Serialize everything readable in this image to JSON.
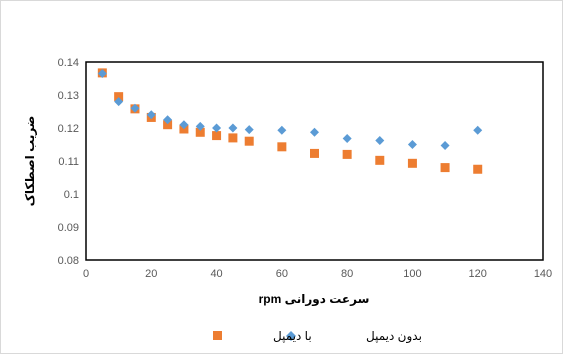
{
  "chart_data": {
    "type": "scatter",
    "title": "",
    "xlabel": "سرعت دورانی rpm",
    "ylabel": "ضریب اصطکاک",
    "xlim": [
      0,
      140
    ],
    "ylim": [
      0.08,
      0.14
    ],
    "xticks": [
      0,
      20,
      40,
      60,
      80,
      100,
      120,
      140
    ],
    "yticks": [
      0.08,
      0.09,
      0.1,
      0.11,
      0.12,
      0.13,
      0.14
    ],
    "ytick_labels": [
      "0.08",
      "0.09",
      "0.1",
      "0.11",
      "0.12",
      "0.13",
      "0.14"
    ],
    "grid": false,
    "legend_position": "bottom",
    "series": [
      {
        "name": "بدون دیمپل",
        "marker": "diamond",
        "color": "#5B9BD5",
        "x": [
          5,
          10,
          15,
          20,
          25,
          30,
          35,
          40,
          45,
          50,
          60,
          70,
          80,
          90,
          100,
          110,
          120
        ],
        "y": [
          0.1365,
          0.128,
          0.126,
          0.124,
          0.1225,
          0.121,
          0.1205,
          0.12,
          0.12,
          0.1195,
          0.1193,
          0.1187,
          0.1168,
          0.1162,
          0.115,
          0.1147,
          0.1193
        ]
      },
      {
        "name": "با دیمپل",
        "marker": "square",
        "color": "#ED7D31",
        "x": [
          5,
          10,
          15,
          20,
          25,
          30,
          35,
          40,
          45,
          50,
          60,
          70,
          80,
          90,
          100,
          110,
          120
        ],
        "y": [
          0.1367,
          0.1295,
          0.1258,
          0.1232,
          0.121,
          0.1197,
          0.1187,
          0.1177,
          0.117,
          0.116,
          0.1143,
          0.1123,
          0.112,
          0.1102,
          0.1093,
          0.108,
          0.1075
        ]
      }
    ]
  }
}
